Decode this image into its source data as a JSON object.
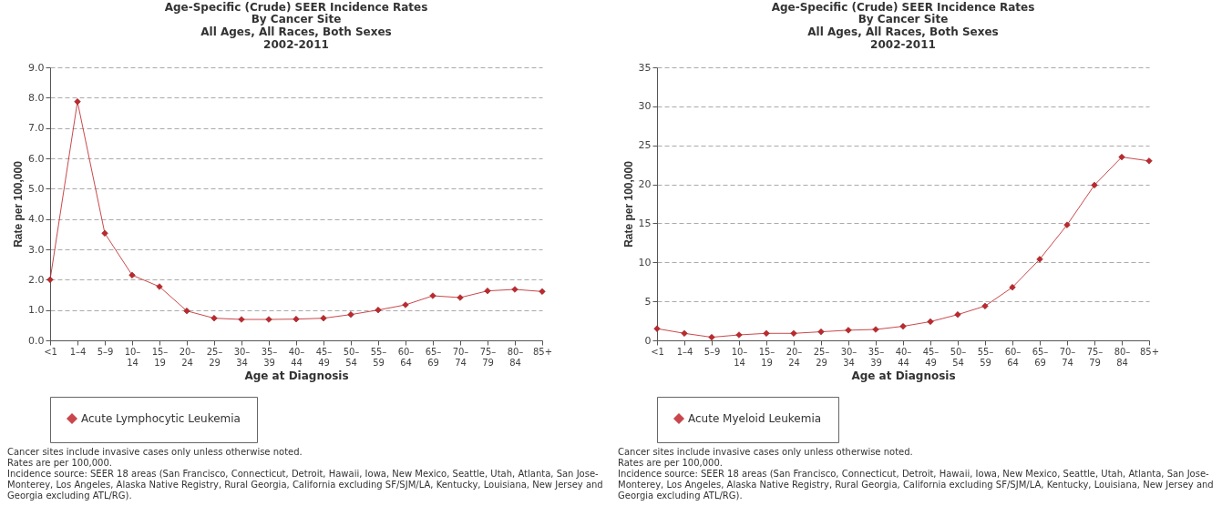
{
  "chart_data": [
    {
      "type": "line",
      "title": "Age-Specific (Crude) SEER Incidence Rates",
      "subtitle": "By Cancer Site\nAll Ages, All Races, Both Sexes\n2002-2011",
      "xlabel": "Age at Diagnosis",
      "ylabel": "Rate per 100,000",
      "categories": [
        "<1",
        "1–4",
        "5–9",
        "10–14",
        "15–19",
        "20–24",
        "25–29",
        "30–34",
        "35–39",
        "40–44",
        "45–49",
        "50–54",
        "55–59",
        "60–64",
        "65–69",
        "70–74",
        "75–79",
        "80–84",
        "85+"
      ],
      "series": [
        {
          "name": "Acute Lymphocytic Leukemia",
          "color": "#c0282d",
          "values": [
            2.0,
            7.87,
            3.53,
            2.15,
            1.77,
            0.97,
            0.73,
            0.69,
            0.69,
            0.7,
            0.73,
            0.85,
            1.0,
            1.17,
            1.47,
            1.41,
            1.63,
            1.68,
            1.61
          ]
        }
      ],
      "ylim": [
        0,
        9
      ],
      "yticks": [
        {
          "value": 0,
          "label": "0.0"
        },
        {
          "value": 1,
          "label": "1.0"
        },
        {
          "value": 2,
          "label": "2.0"
        },
        {
          "value": 3,
          "label": "3.0"
        },
        {
          "value": 4,
          "label": "4.0"
        },
        {
          "value": 5,
          "label": "5.0"
        },
        {
          "value": 6,
          "label": "6.0"
        },
        {
          "value": 7,
          "label": "7.0"
        },
        {
          "value": 8,
          "label": "8.0"
        },
        {
          "value": 9,
          "label": "9.0"
        }
      ],
      "grid": "y",
      "legend": "bottom",
      "marker": "diamond",
      "line_style": "solid",
      "annotations": [
        "Cancer sites include invasive cases only unless otherwise noted.",
        "Rates are per 100,000.",
        "Incidence source: SEER 18 areas (San Francisco, Connecticut, Detroit, Hawaii, Iowa, New Mexico, Seattle, Utah, Atlanta, San Jose-Monterey, Los Angeles, Alaska Native Registry, Rural Georgia, California excluding SF/SJM/LA, Kentucky, Louisiana, New Jersey and Georgia excluding ATL/RG)."
      ]
    },
    {
      "type": "line",
      "title": "Age-Specific (Crude) SEER Incidence Rates",
      "subtitle": "By Cancer Site\nAll Ages, All Races, Both Sexes\n2002-2011",
      "xlabel": "Age at Diagnosis",
      "ylabel": "Rate per 100,000",
      "categories": [
        "<1",
        "1–4",
        "5–9",
        "10–14",
        "15–19",
        "20–24",
        "25–29",
        "30–34",
        "35–39",
        "40–44",
        "45–49",
        "50–54",
        "55–59",
        "60–64",
        "65–69",
        "70–74",
        "75–79",
        "80–84",
        "85+"
      ],
      "series": [
        {
          "name": "Acute Myeloid Leukemia",
          "color": "#c0282d",
          "values": [
            1.5,
            0.9,
            0.4,
            0.7,
            0.9,
            0.9,
            1.1,
            1.3,
            1.4,
            1.8,
            2.4,
            3.3,
            4.4,
            6.8,
            10.4,
            14.8,
            19.9,
            23.5,
            23.0
          ]
        }
      ],
      "ylim": [
        0,
        35
      ],
      "yticks": [
        0,
        5,
        10,
        15,
        20,
        25,
        30,
        35
      ],
      "grid": "y",
      "legend": "bottom",
      "marker": "diamond",
      "line_style": "solid",
      "annotations": [
        "Cancer sites include invasive cases only unless otherwise noted.",
        "Rates are per 100,000.",
        "Incidence source: SEER 18 areas (San Francisco, Connecticut, Detroit, Hawaii, Iowa, New Mexico, Seattle, Utah, Atlanta, San Jose-Monterey, Los Angeles, Alaska Native Registry, Rural Georgia, California excluding SF/SJM/LA, Kentucky, Louisiana, New Jersey and Georgia excluding ATL/RG)."
      ]
    }
  ]
}
